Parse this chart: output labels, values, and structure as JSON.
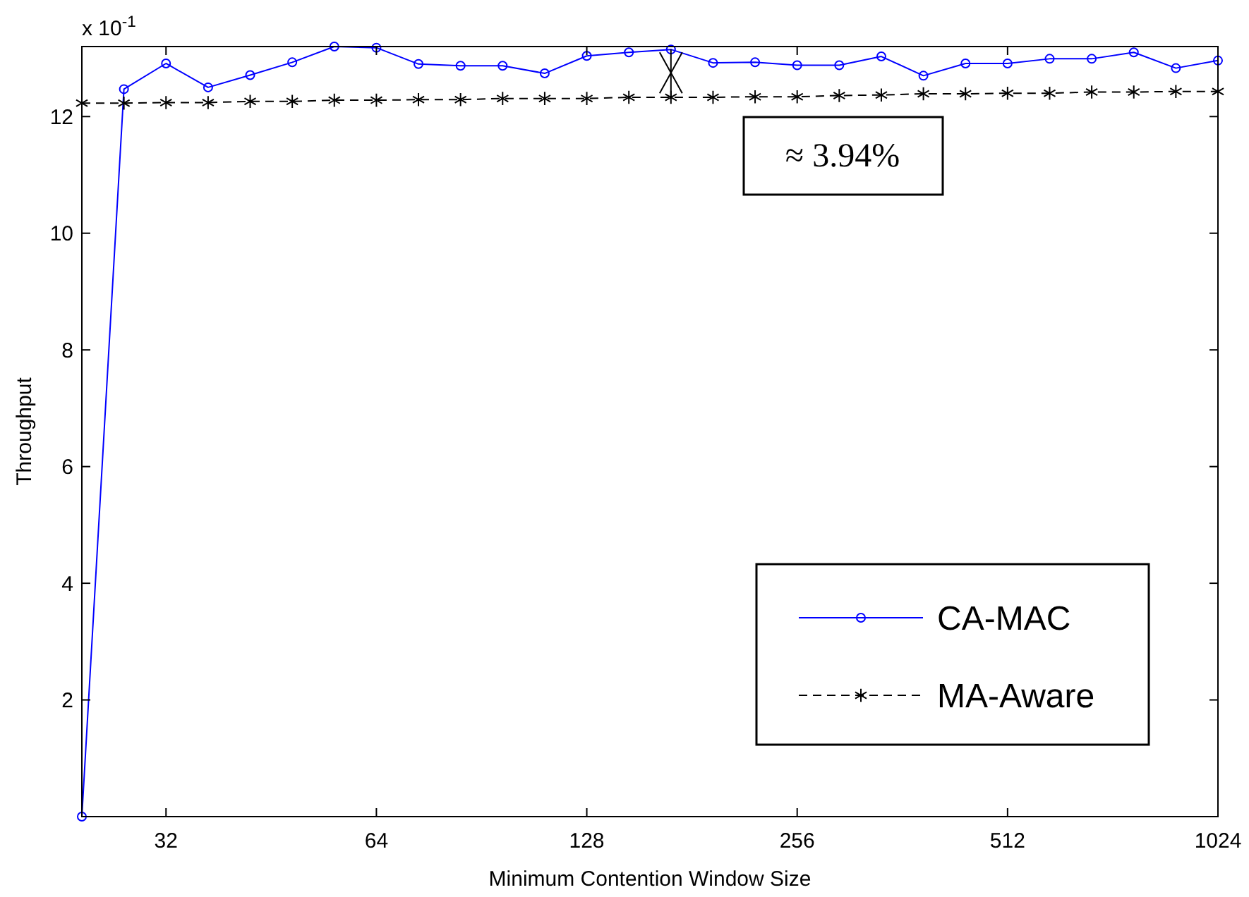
{
  "chart_data": {
    "type": "line",
    "xlabel": "Minimum Contention Window Size",
    "ylabel": "Throughput",
    "categories": [
      null,
      null,
      "32",
      null,
      null,
      null,
      null,
      "64",
      null,
      null,
      null,
      null,
      "128",
      null,
      null,
      null,
      null,
      "256",
      null,
      null,
      null,
      null,
      "512",
      null,
      null,
      null,
      null,
      "1024"
    ],
    "series": [
      {
        "name": "CA-MAC",
        "color": "#0000ff",
        "marker": "circle",
        "line_style": "solid",
        "values": [
          0,
          12.47,
          12.91,
          12.5,
          12.71,
          12.93,
          13.2,
          13.18,
          12.9,
          12.87,
          12.87,
          12.74,
          13.04,
          13.1,
          13.15,
          12.92,
          12.93,
          12.88,
          12.88,
          13.03,
          12.7,
          12.91,
          12.91,
          12.99,
          12.99,
          13.1,
          12.83,
          12.96
        ]
      },
      {
        "name": "MA-Aware",
        "color": "#000000",
        "marker": "cross",
        "line_style": "dashed",
        "values": [
          12.23,
          12.23,
          12.24,
          12.24,
          12.26,
          12.26,
          12.28,
          12.28,
          12.29,
          12.29,
          12.31,
          12.31,
          12.31,
          12.33,
          12.33,
          12.33,
          12.34,
          12.34,
          12.36,
          12.37,
          12.39,
          12.39,
          12.4,
          12.4,
          12.42,
          12.42,
          12.43,
          12.43
        ]
      }
    ],
    "ylim": [
      0,
      13.2
    ],
    "yticks": [
      2,
      4,
      6,
      8,
      10,
      12
    ],
    "annotations": [
      "x 10$^{-1}$",
      "≈ 3.94%"
    ],
    "legend": "bottom right",
    "grid": false
  }
}
